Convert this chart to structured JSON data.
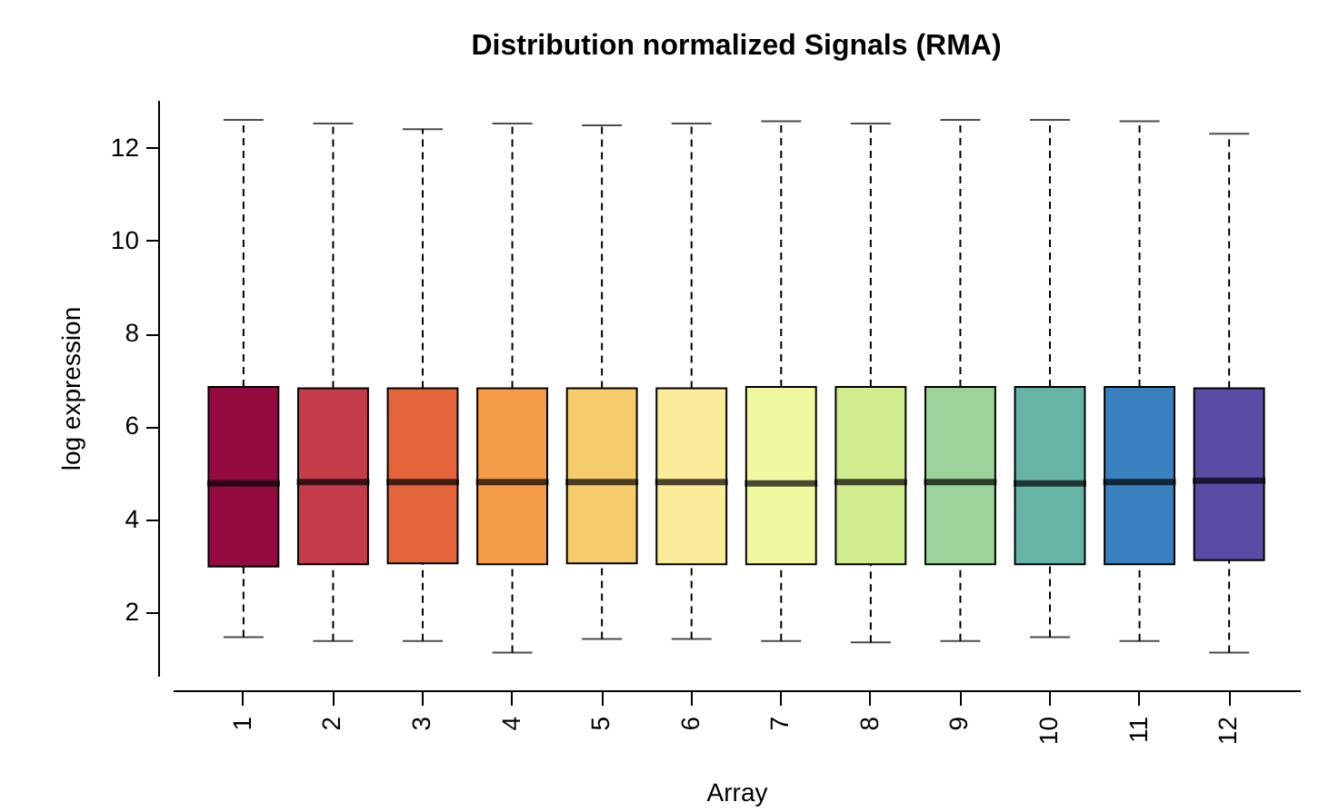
{
  "chart_data": {
    "type": "box",
    "title": "Distribution normalized Signals (RMA)",
    "xlabel": "Array",
    "ylabel": "log expression",
    "categories": [
      "1",
      "2",
      "3",
      "4",
      "5",
      "6",
      "7",
      "8",
      "9",
      "10",
      "11",
      "12"
    ],
    "colors": [
      "#930b3f",
      "#c43c4a",
      "#e4653a",
      "#f49c48",
      "#f7cc6d",
      "#faec98",
      "#f0f8a0",
      "#d2ec90",
      "#9cd39b",
      "#66b4a5",
      "#3a80bf",
      "#5a4ca4"
    ],
    "boxes": [
      {
        "low": 1.46,
        "q1": 2.98,
        "median": 4.77,
        "q3": 6.85,
        "high": 12.6
      },
      {
        "low": 1.38,
        "q1": 3.03,
        "median": 4.8,
        "q3": 6.82,
        "high": 12.52
      },
      {
        "low": 1.38,
        "q1": 3.05,
        "median": 4.8,
        "q3": 6.82,
        "high": 12.4
      },
      {
        "low": 1.13,
        "q1": 3.03,
        "median": 4.8,
        "q3": 6.82,
        "high": 12.52
      },
      {
        "low": 1.42,
        "q1": 3.05,
        "median": 4.8,
        "q3": 6.82,
        "high": 12.48
      },
      {
        "low": 1.42,
        "q1": 3.03,
        "median": 4.8,
        "q3": 6.82,
        "high": 12.52
      },
      {
        "low": 1.38,
        "q1": 3.03,
        "median": 4.77,
        "q3": 6.85,
        "high": 12.57
      },
      {
        "low": 1.35,
        "q1": 3.03,
        "median": 4.8,
        "q3": 6.85,
        "high": 12.52
      },
      {
        "low": 1.38,
        "q1": 3.03,
        "median": 4.8,
        "q3": 6.85,
        "high": 12.6
      },
      {
        "low": 1.46,
        "q1": 3.03,
        "median": 4.77,
        "q3": 6.85,
        "high": 12.6
      },
      {
        "low": 1.38,
        "q1": 3.03,
        "median": 4.8,
        "q3": 6.85,
        "high": 12.57
      },
      {
        "low": 1.13,
        "q1": 3.12,
        "median": 4.83,
        "q3": 6.82,
        "high": 12.3
      }
    ],
    "ylim": [
      0.63,
      13.03
    ],
    "yticks": [
      2,
      4,
      6,
      8,
      10,
      12
    ],
    "grid": false,
    "legend": false
  }
}
